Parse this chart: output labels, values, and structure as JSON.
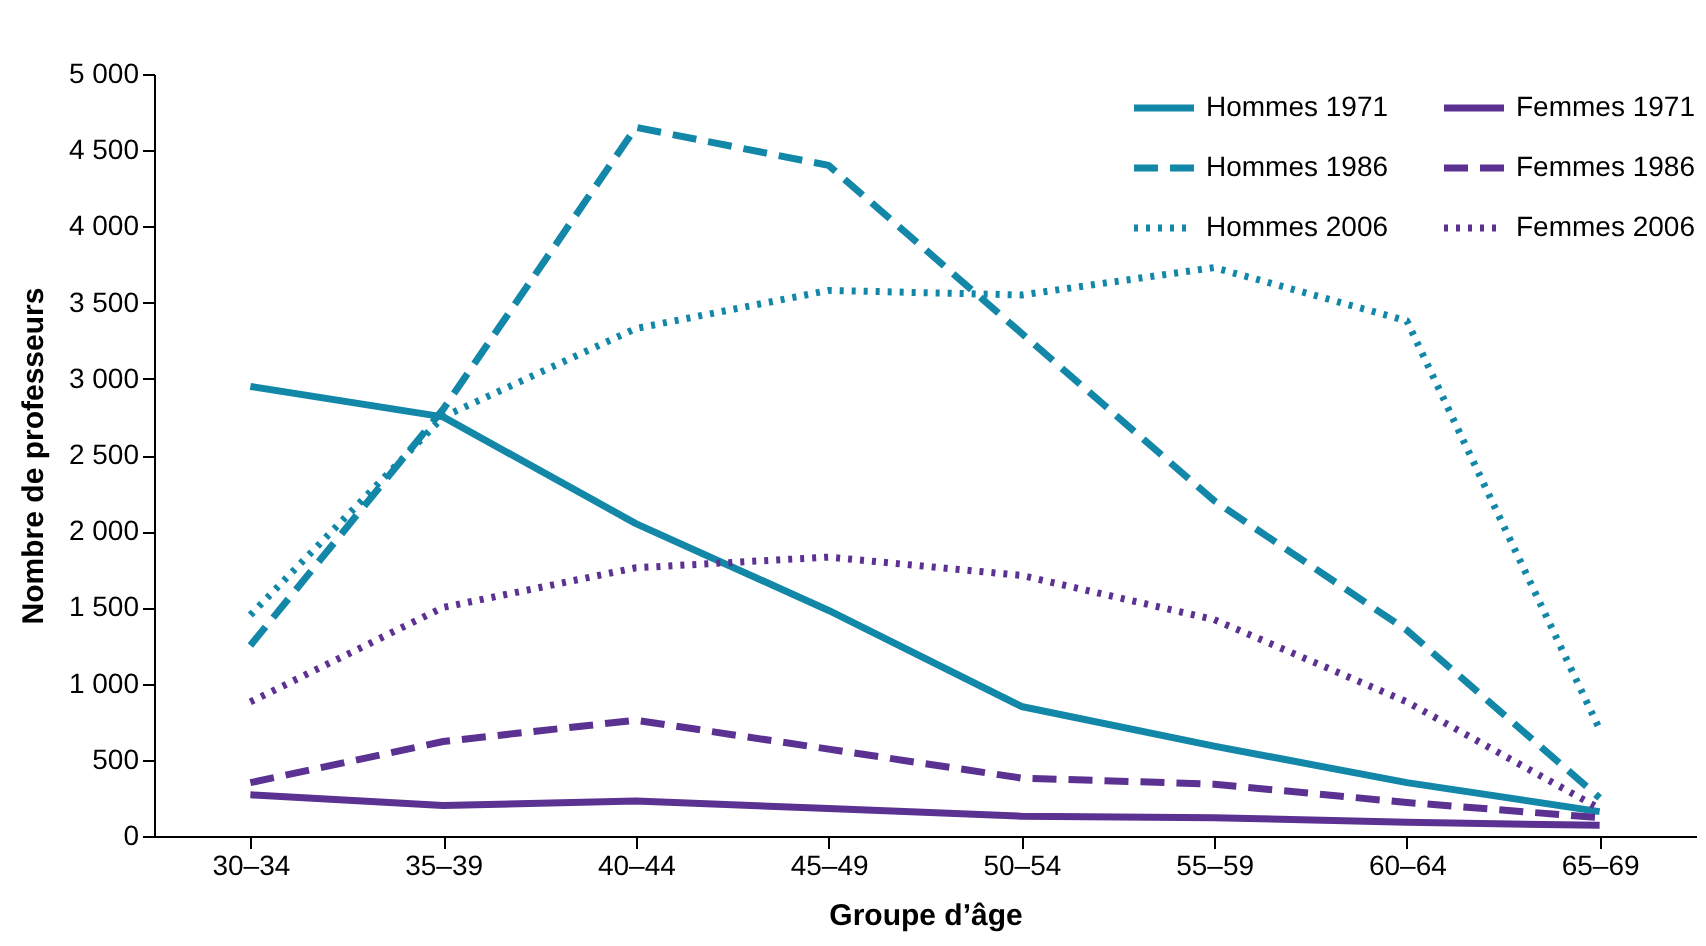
{
  "chart_data": {
    "type": "line",
    "xlabel": "Groupe d’âge",
    "ylabel": "Nombre de professeurs",
    "categories": [
      "30–34",
      "35–39",
      "40–44",
      "45–49",
      "50–54",
      "55–59",
      "60–64",
      "65–69"
    ],
    "series": [
      {
        "name": "Hommes 1971",
        "color": "#1287a8",
        "line_style": "solid",
        "values": [
          2950,
          2750,
          2050,
          1480,
          850,
          590,
          350,
          160
        ]
      },
      {
        "name": "Hommes 1986",
        "color": "#1287a8",
        "line_style": "dashed",
        "values": [
          1250,
          2800,
          4650,
          4400,
          3300,
          2200,
          1350,
          250
        ]
      },
      {
        "name": "Hommes 2006",
        "color": "#1287a8",
        "line_style": "dotted",
        "values": [
          1450,
          2750,
          3330,
          3580,
          3550,
          3730,
          3380,
          700
        ]
      },
      {
        "name": "Femmes 1971",
        "color": "#5b3192",
        "line_style": "solid",
        "values": [
          270,
          200,
          230,
          180,
          130,
          120,
          90,
          70
        ]
      },
      {
        "name": "Femmes 1986",
        "color": "#5b3192",
        "line_style": "dashed",
        "values": [
          350,
          620,
          760,
          570,
          380,
          340,
          220,
          120
        ]
      },
      {
        "name": "Femmes 2006",
        "color": "#5b3192",
        "line_style": "dotted",
        "values": [
          880,
          1500,
          1760,
          1830,
          1710,
          1420,
          880,
          180
        ]
      }
    ],
    "ylim": [
      0,
      5000
    ],
    "yticks": [
      0,
      {
        "value": 500,
        "label": "500"
      },
      {
        "value": 1000,
        "label": "1 000"
      },
      {
        "value": 1500,
        "label": "1 500"
      },
      {
        "value": 2000,
        "label": "2 000"
      },
      {
        "value": 2500,
        "label": "2 500"
      },
      {
        "value": 3000,
        "label": "3 000"
      },
      {
        "value": 3500,
        "label": "3 500"
      },
      {
        "value": 4000,
        "label": "4 000"
      },
      {
        "value": 4500,
        "label": "4 500"
      },
      {
        "value": 5000,
        "label": "5 000"
      }
    ],
    "grid": false,
    "legend": "top right",
    "marker": "none"
  }
}
